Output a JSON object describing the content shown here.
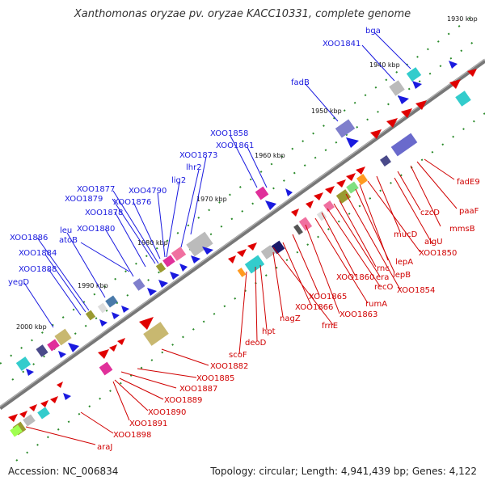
{
  "title": "Xanthomonas oryzae pv. oryzae KACC10331, complete genome",
  "footer": {
    "accession": "Accession: NC_006834",
    "summary": "Topology: circular; Length: 4,941,439 bp; Genes: 4,122"
  },
  "kbp_labels": [
    "1930 kbp",
    "1940 kbp",
    "1950 kbp",
    "1960 kbp",
    "1970 kbp",
    "1980 kbp",
    "1990 kbp",
    "2000 kbp"
  ],
  "blue_labels": [
    "XOO1841",
    "bga",
    "fadB",
    "XOO1858",
    "XOO1861",
    "XOO1873",
    "lhr2",
    "lig2",
    "XOO4790",
    "XOO1877",
    "XOO1879",
    "XOO1876",
    "XOO1878",
    "XOO1880",
    "leu",
    "atoB",
    "XOO1886",
    "XOO1884",
    "XOO1888",
    "yegD"
  ],
  "red_labels": [
    "fadE9",
    "paaF",
    "mmsB",
    "czcD",
    "algU",
    "mucD",
    "XOO1850",
    "lepA",
    "lepB",
    "XOO1854",
    "rnc",
    "era",
    "recO",
    "XOO1860",
    "rumA",
    "XOO1863",
    "XOO1865",
    "XOO1866",
    "frnE",
    "nagZ",
    "hpt",
    "deoD",
    "scoF",
    "XOO1882",
    "XOO1885",
    "XOO1887",
    "XOO1889",
    "XOO1890",
    "XOO1891",
    "XOO1898",
    "araJ"
  ],
  "colors": {
    "forward": "#1a1adf",
    "reverse": "#e00000",
    "axis": "#888888"
  }
}
